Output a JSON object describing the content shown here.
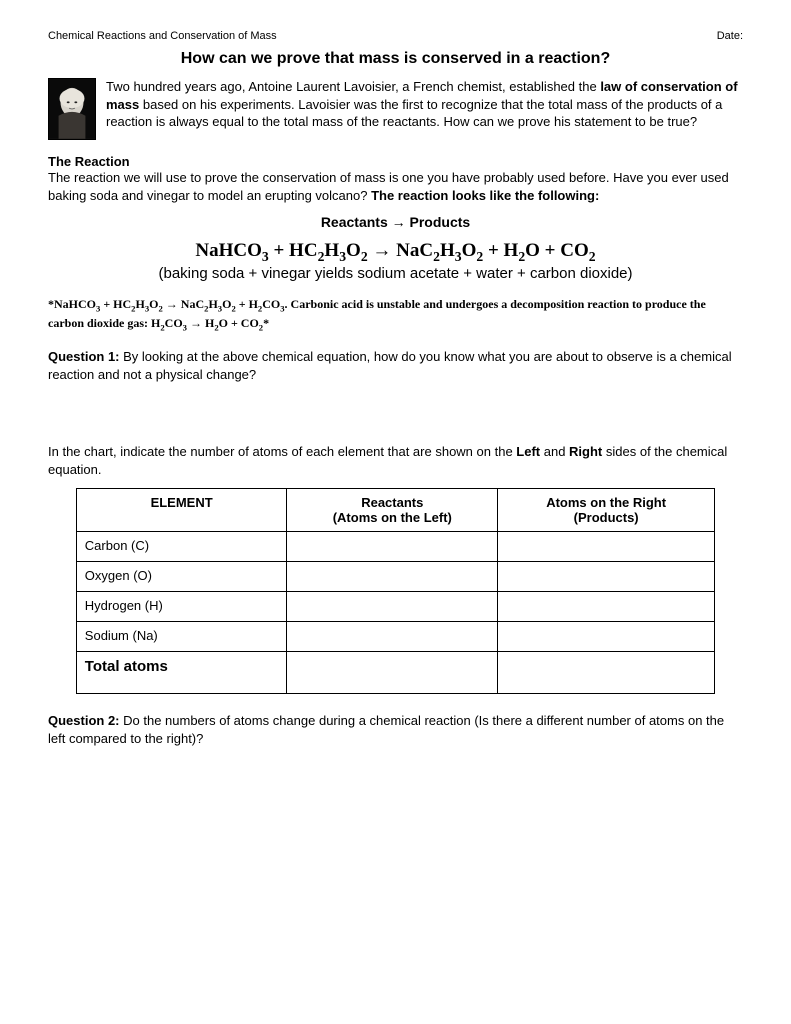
{
  "header": {
    "left": "Chemical Reactions and Conservation of Mass",
    "right": "Date:"
  },
  "title": "How can we prove that mass is conserved in a reaction?",
  "intro": {
    "p1_a": "Two hundred years ago, Antoine Laurent Lavoisier, a French chemist, established the ",
    "p1_b": "law of conservation of mass",
    "p1_c": " based on his experiments.  Lavoisier was the first to recognize that the total mass of the products of a reaction is always equal to the total mass of the reactants.  How can we prove his statement to be true?"
  },
  "reaction": {
    "heading": "The Reaction",
    "body_a": "The reaction we will use to prove the conservation of mass is one you have probably used before. Have you ever used baking soda and vinegar to model an erupting volcano? ",
    "body_b": "The reaction looks like the following:",
    "rp_label": "Reactants → Products",
    "equation_html": "NaHCO<sub>3</sub> + HC<sub>2</sub>H<sub>3</sub>O<sub>2</sub> → NaC<sub>2</sub>H<sub>3</sub>O<sub>2</sub> + H<sub>2</sub>O + CO<sub>2</sub>",
    "equation_desc": "(baking soda + vinegar yields sodium acetate + water + carbon dioxide)",
    "note_html": "*NaHCO<sub>3</sub> + HC<sub>2</sub>H<sub>3</sub>O<sub>2</sub> → NaC<sub>2</sub>H<sub>3</sub>O<sub>2</sub> + H<sub>2</sub>CO<sub>3</sub>. Carbonic acid is unstable and undergoes a decomposition reaction to produce the carbon dioxide gas: H<sub>2</sub>CO<sub>3</sub> → H<sub>2</sub>O + CO<sub>2</sub>*"
  },
  "q1": {
    "label": "Question 1:",
    "text": "  By looking at the above chemical equation, how do you know what you are about to observe is a chemical reaction and not a physical change?"
  },
  "chart_intro_a": "In the chart, indicate the number of atoms of each element that are shown on the ",
  "chart_intro_b": "Left",
  "chart_intro_c": " and ",
  "chart_intro_d": "Right",
  "chart_intro_e": " sides of the chemical equation.",
  "table": {
    "columns": [
      "ELEMENT",
      "Reactants\n(Atoms on the Left)",
      "Atoms on the Right\n(Products)"
    ],
    "rows": [
      [
        "Carbon (C)",
        "",
        ""
      ],
      [
        "Oxygen (O)",
        "",
        ""
      ],
      [
        "Hydrogen (H)",
        "",
        ""
      ],
      [
        "Sodium (Na)",
        "",
        ""
      ]
    ],
    "total_label": "Total atoms",
    "col_widths": [
      "33%",
      "33%",
      "34%"
    ]
  },
  "q2": {
    "label": "Question 2:",
    "text": "  Do the numbers of atoms change during a chemical reaction (Is there a different number of atoms on the left compared to the right)?"
  },
  "colors": {
    "page_bg": "#ffffff",
    "outer_bg": "#e8e8e8",
    "text": "#000000",
    "border": "#000000"
  }
}
